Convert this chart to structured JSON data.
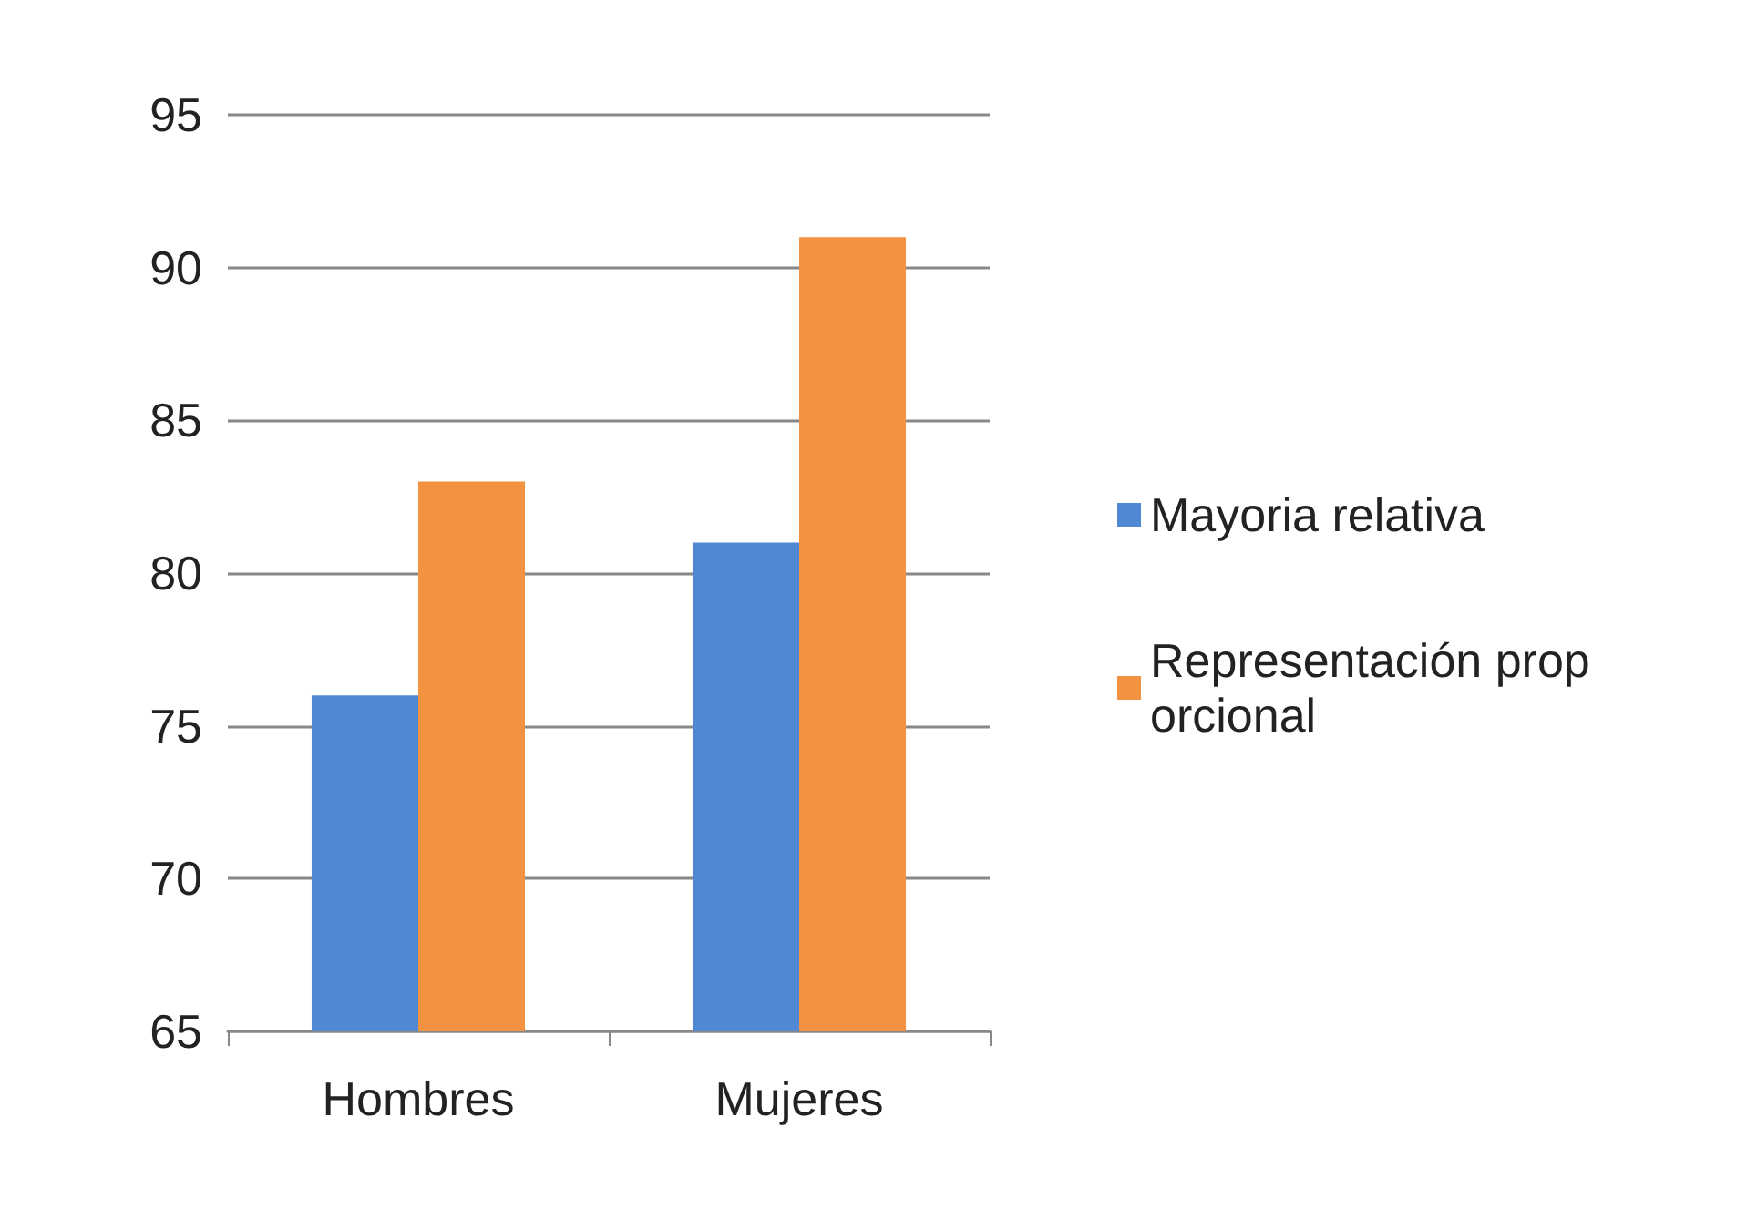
{
  "chart_data": {
    "type": "bar",
    "categories": [
      "Hombres",
      "Mujeres"
    ],
    "series": [
      {
        "name": "Mayoria relativa",
        "color": "#5088d4",
        "values": [
          76,
          81
        ]
      },
      {
        "name": "Representación proporcional",
        "color": "#f39240",
        "values": [
          83,
          91
        ]
      }
    ],
    "ylim": [
      65,
      95
    ],
    "yticks": [
      65,
      70,
      75,
      80,
      85,
      90,
      95
    ],
    "grid": "y",
    "legend": "right"
  }
}
